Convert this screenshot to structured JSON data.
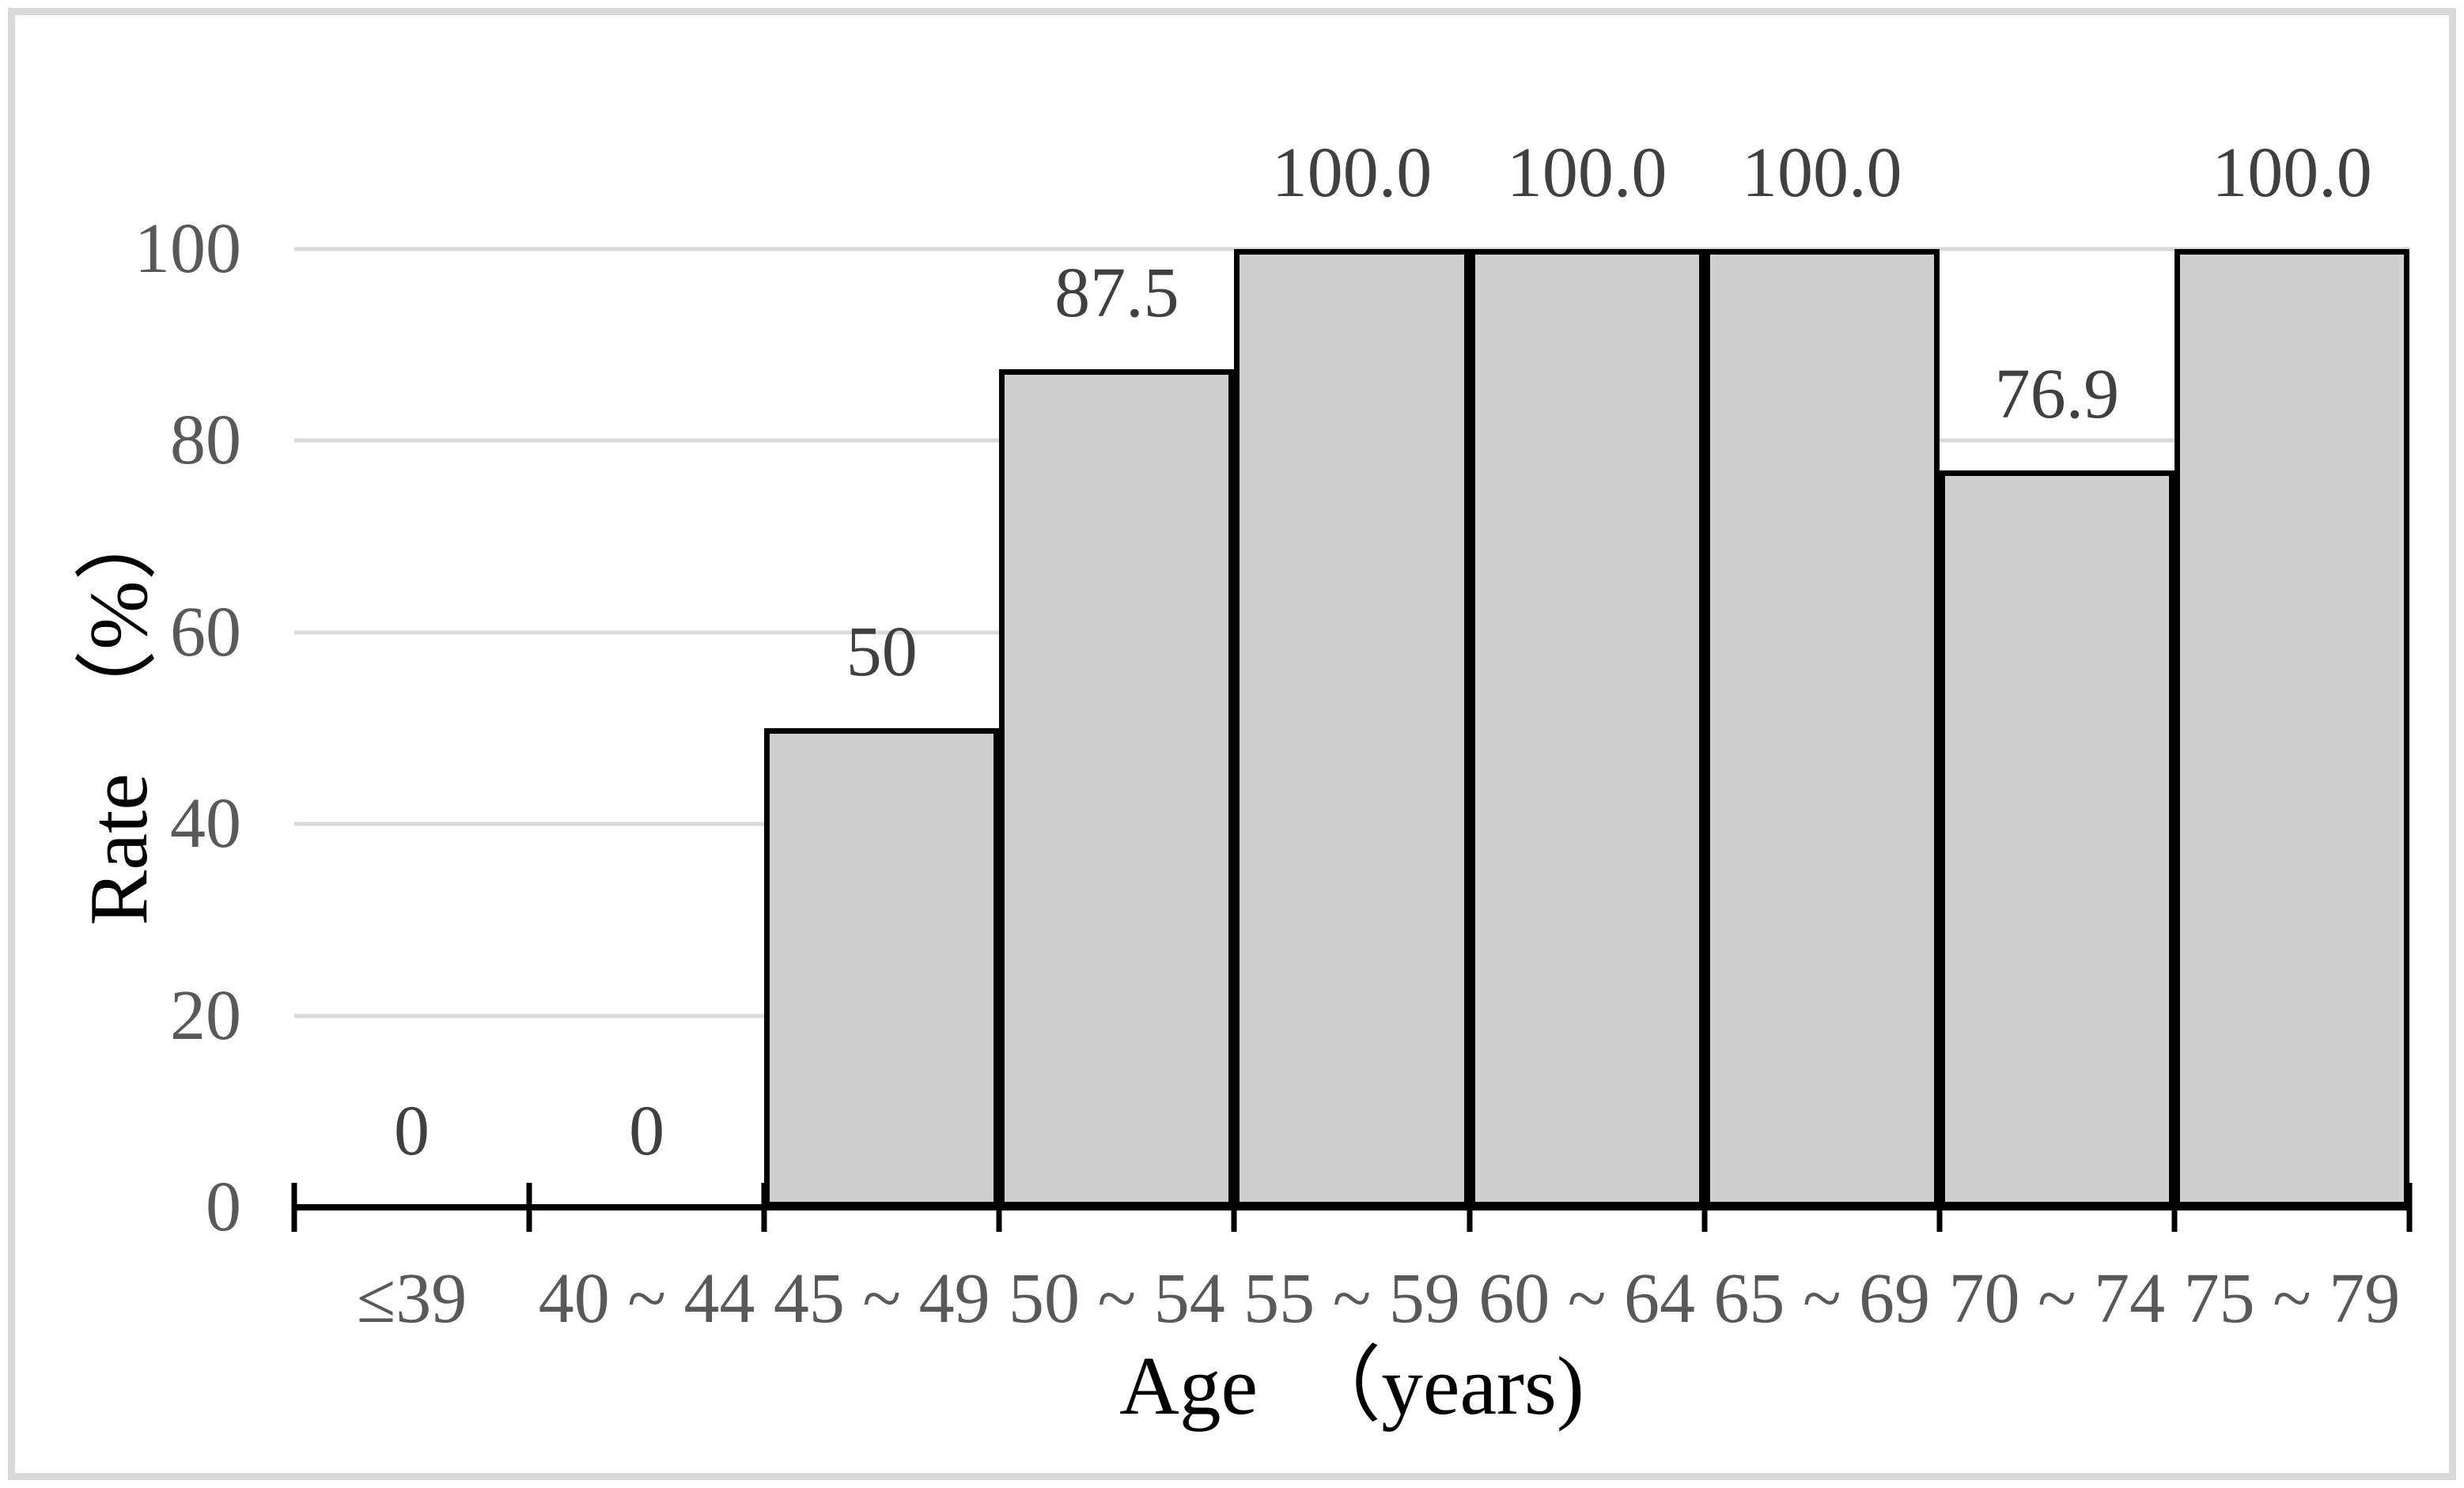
{
  "chart_data": {
    "type": "bar",
    "title": "",
    "categories": [
      "≤39",
      "40 ~ 44",
      "45 ~ 49",
      "50 ~ 54",
      "55 ~ 59",
      "60 ~ 64",
      "65 ~ 69",
      "70 ~ 74",
      "75 ~ 79"
    ],
    "values": [
      0,
      0,
      50,
      87.5,
      100,
      100,
      100,
      76.9,
      100
    ],
    "data_labels": [
      "0",
      "0",
      "50",
      "87.5",
      "100.0",
      "100.0",
      "100.0",
      "76.9",
      "100.0"
    ],
    "xlabel": "Age （years)",
    "ylabel": "Rate （%）",
    "yticks": [
      0,
      20,
      40,
      60,
      80,
      100
    ],
    "ytick_labels": [
      "0",
      "20",
      "40",
      "60",
      "80",
      "100"
    ],
    "ylim": [
      0,
      100
    ],
    "grid": "horizontal",
    "legend": "none",
    "colors": {
      "bar_fill": "#cfcfcf",
      "bar_border": "#000000",
      "gridline": "#d9d9d9",
      "axis_line": "#000000",
      "tick_label": "#595959",
      "data_label": "#404040",
      "axis_title": "#000000",
      "frame_border": "#d9d9d9",
      "background": "#ffffff"
    }
  }
}
